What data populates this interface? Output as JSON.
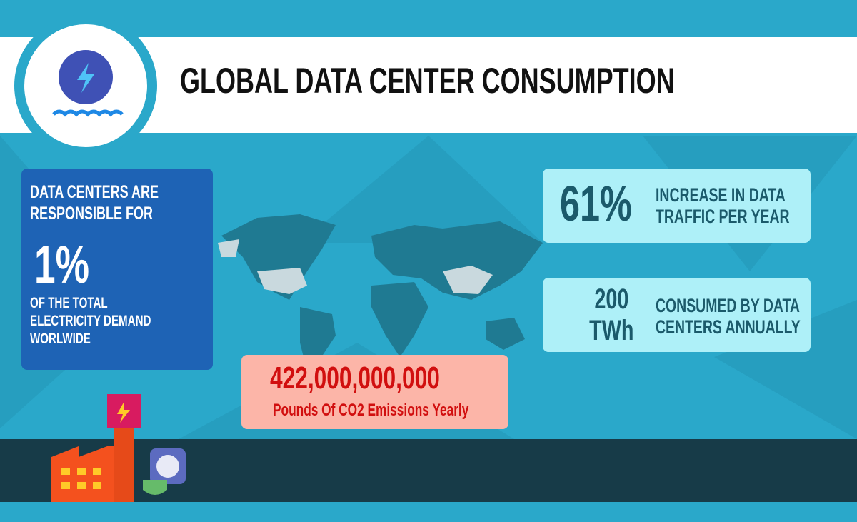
{
  "header": {
    "title": "GLOBAL DATA CENTER CONSUMPTION"
  },
  "share_card": {
    "intro": [
      "DATA CENTERS ARE",
      "RESPONSIBLE FOR"
    ],
    "value": "1%",
    "outro": [
      "OF THE TOTAL",
      "ELECTRICITY DEMAND",
      "WORLWIDE"
    ]
  },
  "stats": [
    {
      "value": [
        "61%"
      ],
      "label": [
        "INCREASE IN DATA",
        "TRAFFIC PER YEAR"
      ]
    },
    {
      "value": [
        "200",
        "TWh"
      ],
      "label": [
        "CONSUMED BY DATA",
        "CENTERS ANNUALLY"
      ]
    }
  ],
  "emissions": {
    "value": "422,000,000,000",
    "label": "Pounds Of CO2 Emissions Yearly"
  }
}
